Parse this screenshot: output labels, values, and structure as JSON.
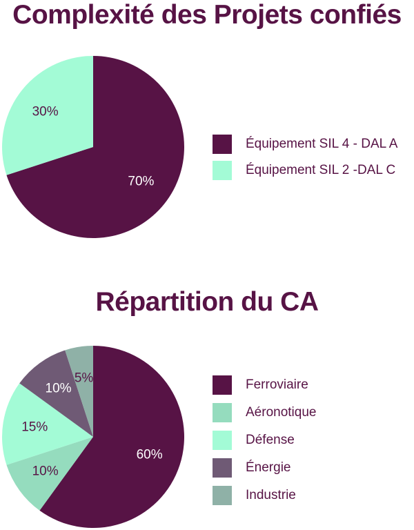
{
  "chart_data": [
    {
      "type": "pie",
      "title": "Complexité des Projets confiés",
      "slices": [
        {
          "label": "Équipement SIL 4 - DAL A",
          "value": 70,
          "display": "70%",
          "color": "#571345",
          "text_color": "#ffffff"
        },
        {
          "label": "Équipement SIL 2 -DAL C",
          "value": 30,
          "display": "30%",
          "color": "#a3fbd6",
          "text_color": "#571345"
        }
      ],
      "legend_position": "right"
    },
    {
      "type": "pie",
      "title": "Répartition du CA",
      "slices": [
        {
          "label": "Ferroviaire",
          "value": 60,
          "display": "60%",
          "color": "#571345",
          "text_color": "#ffffff"
        },
        {
          "label": "Aéronotique",
          "value": 10,
          "display": "10%",
          "color": "#95dcbe",
          "text_color": "#571345"
        },
        {
          "label": "Défense",
          "value": 15,
          "display": "15%",
          "color": "#a3fbd6",
          "text_color": "#571345"
        },
        {
          "label": "Énergie",
          "value": 10,
          "display": "10%",
          "color": "#6f5a75",
          "text_color": "#ffffff"
        },
        {
          "label": "Industrie",
          "value": 5,
          "display": "5%",
          "color": "#8fb1a7",
          "text_color": "#571345"
        }
      ],
      "legend_position": "right"
    }
  ]
}
